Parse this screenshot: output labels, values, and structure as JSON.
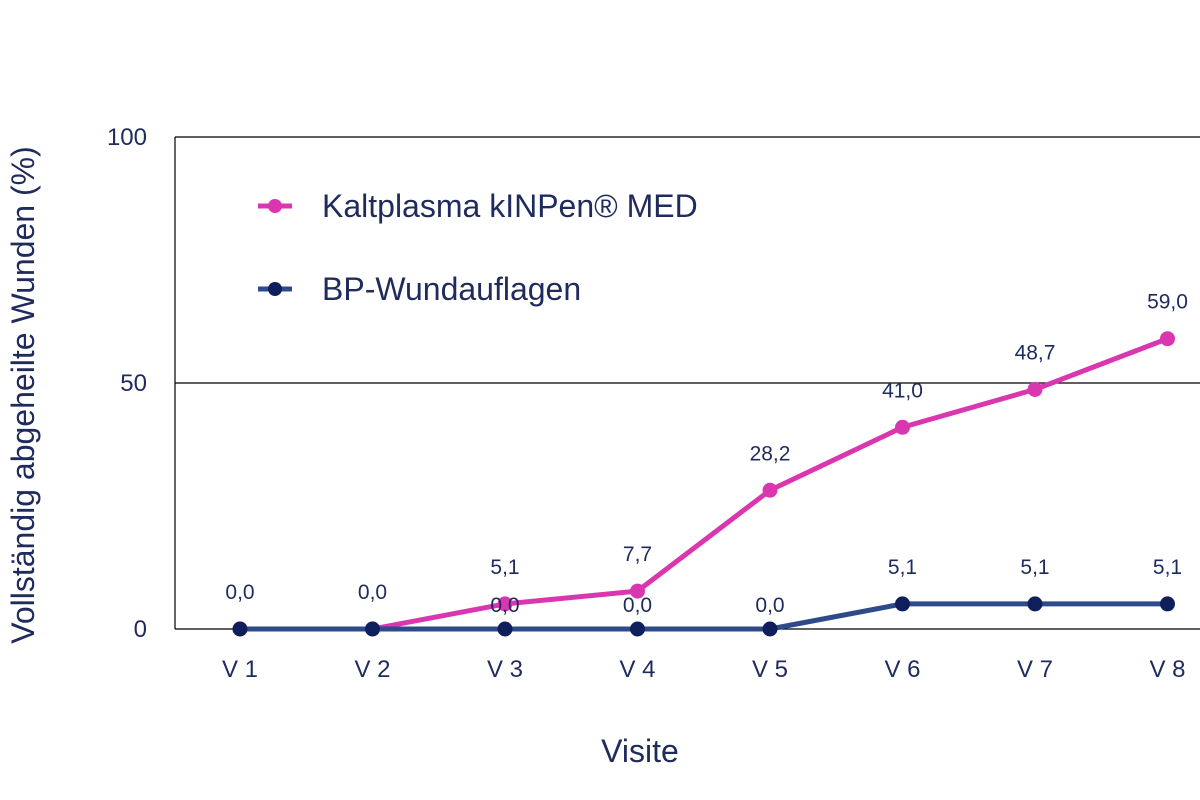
{
  "chart_data": {
    "type": "line",
    "xlabel": "Visite",
    "ylabel": "Vollständig abgeheilte Wunden (%)",
    "categories": [
      "V 1",
      "V 2",
      "V 3",
      "V 4",
      "V 5",
      "V 6",
      "V 7",
      "V 8"
    ],
    "ylim": [
      0,
      100
    ],
    "yticks": [
      "0",
      "50",
      "100"
    ],
    "grid": "horizontal at 50",
    "legend_position": "top-left",
    "series": [
      {
        "name": "Kaltplasma kINPen® MED",
        "color": "#d936b0",
        "values": [
          0.0,
          0.0,
          5.1,
          7.7,
          28.2,
          41.0,
          48.7,
          59.0
        ],
        "labels": [
          "0,0",
          "0,0",
          "5,1",
          "7,7",
          "28,2",
          "41,0",
          "48,7",
          "59,0"
        ]
      },
      {
        "name": "BP-Wundauflagen",
        "color": "#2e4a8a",
        "marker_color": "#0f1f5c",
        "values": [
          0.0,
          0.0,
          0.0,
          0.0,
          0.0,
          5.1,
          5.1,
          5.1
        ],
        "labels": [
          "",
          "",
          "0,0",
          "0,0",
          "0,0",
          "5,1",
          "5,1",
          "5,1"
        ]
      }
    ]
  }
}
